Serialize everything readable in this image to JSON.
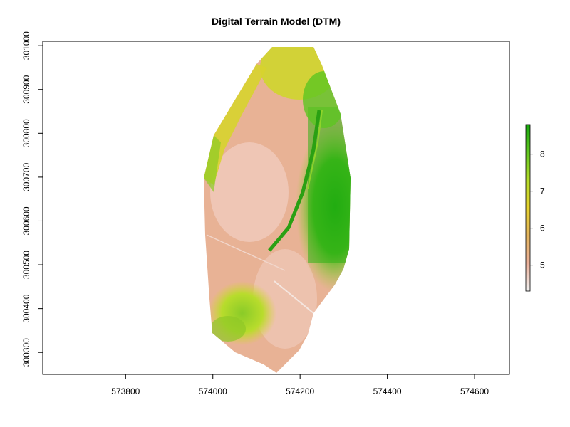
{
  "chart_data": {
    "type": "heatmap",
    "title": "Digital Terrain Model (DTM)",
    "xlabel": "",
    "ylabel": "",
    "x_ticks": [
      "573800",
      "574000",
      "574200",
      "574400",
      "574600"
    ],
    "x_tick_values": [
      573800,
      574000,
      574200,
      574400,
      574600
    ],
    "y_ticks": [
      "300300",
      "300400",
      "300500",
      "300600",
      "300700",
      "300800",
      "300900",
      "301000"
    ],
    "y_tick_values": [
      300300,
      300400,
      300500,
      300600,
      300700,
      300800,
      300900,
      301000
    ],
    "xlim": [
      573610,
      574680
    ],
    "ylim": [
      300250,
      301010
    ],
    "legend": {
      "ticks": [
        "5",
        "6",
        "7",
        "8"
      ],
      "tick_values": [
        5,
        6,
        7,
        8
      ],
      "range": [
        4.3,
        8.8
      ],
      "colors": [
        "#f2f2f2",
        "#ebb09a",
        "#e3b45e",
        "#e6d22f",
        "#b4dc2a",
        "#62c821",
        "#17a80e"
      ]
    },
    "grid": false
  }
}
